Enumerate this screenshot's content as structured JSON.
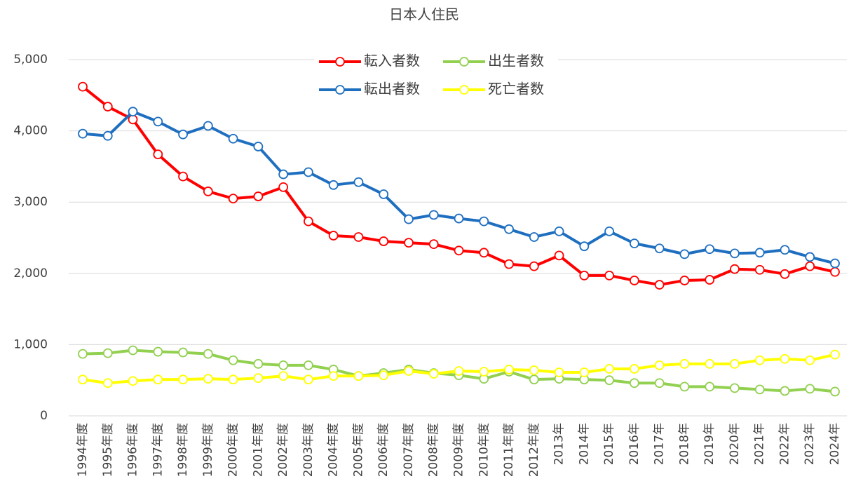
{
  "chart_data": {
    "type": "line",
    "title": "日本人住民",
    "categories": [
      "1994年度",
      "1995年度",
      "1996年度",
      "1997年度",
      "1998年度",
      "1999年度",
      "2000年度",
      "2001年度",
      "2002年度",
      "2003年度",
      "2004年度",
      "2005年度",
      "2006年度",
      "2007年度",
      "2008年度",
      "2009年度",
      "2010年度",
      "2011年度",
      "2012年度",
      "2013年",
      "2014年",
      "2015年",
      "2016年",
      "2017年",
      "2018年",
      "2019年",
      "2020年",
      "2021年",
      "2022年",
      "2023年",
      "2024年"
    ],
    "series": [
      {
        "name": "転入者数",
        "color": "#ff0000",
        "values": [
          4620,
          4340,
          4160,
          3670,
          3360,
          3150,
          3050,
          3080,
          3210,
          2730,
          2530,
          2510,
          2450,
          2430,
          2410,
          2320,
          2290,
          2130,
          2100,
          2250,
          1970,
          1970,
          1900,
          1840,
          1900,
          1910,
          2060,
          2050,
          1990,
          2100,
          2020
        ]
      },
      {
        "name": "転出者数",
        "color": "#1f6fc0",
        "values": [
          3960,
          3930,
          4270,
          4130,
          3950,
          4070,
          3890,
          3780,
          3390,
          3420,
          3240,
          3280,
          3110,
          2760,
          2820,
          2770,
          2730,
          2620,
          2510,
          2590,
          2380,
          2590,
          2420,
          2350,
          2270,
          2340,
          2280,
          2290,
          2330,
          2230,
          2140
        ]
      },
      {
        "name": "出生者数",
        "color": "#92d050",
        "values": [
          870,
          880,
          920,
          900,
          890,
          870,
          780,
          730,
          710,
          710,
          650,
          560,
          600,
          650,
          600,
          570,
          520,
          620,
          510,
          520,
          510,
          500,
          460,
          460,
          410,
          410,
          390,
          370,
          350,
          380,
          340
        ]
      },
      {
        "name": "死亡者数",
        "color": "#ffff00",
        "values": [
          510,
          460,
          490,
          510,
          510,
          520,
          510,
          530,
          560,
          510,
          560,
          560,
          570,
          630,
          590,
          630,
          620,
          650,
          640,
          610,
          610,
          660,
          660,
          710,
          730,
          730,
          730,
          780,
          800,
          780,
          860
        ]
      }
    ],
    "ylim": [
      0,
      5000
    ],
    "yticks": [
      0,
      {
        "value": 1000,
        "label": "1,000"
      },
      {
        "value": 2000,
        "label": "2,000"
      },
      {
        "value": 3000,
        "label": "3,000"
      },
      {
        "value": 4000,
        "label": "4,000"
      },
      {
        "value": 5000,
        "label": "5,000"
      }
    ],
    "grid": true,
    "legend": "top"
  }
}
